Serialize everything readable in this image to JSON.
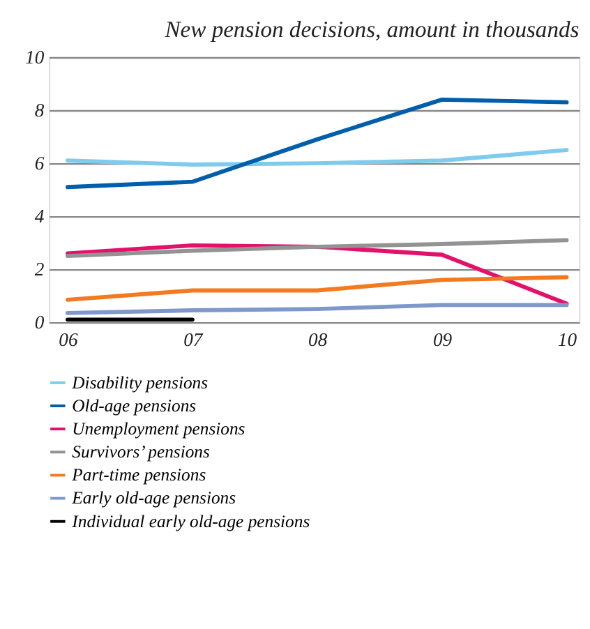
{
  "chart_data": {
    "type": "line",
    "title": "New pension decisions, amount in thousands",
    "categories": [
      "06",
      "07",
      "08",
      "09",
      "10"
    ],
    "series": [
      {
        "name": "Disability pensions",
        "color": "#7fcbee",
        "values": [
          6.1,
          5.95,
          6.0,
          6.1,
          6.5
        ]
      },
      {
        "name": "Old-age pensions",
        "color": "#005eaa",
        "values": [
          5.1,
          5.3,
          6.9,
          8.4,
          8.3
        ]
      },
      {
        "name": "Unemployment pensions",
        "color": "#e2126b",
        "values": [
          2.6,
          2.9,
          2.85,
          2.55,
          0.7
        ]
      },
      {
        "name": "Survivors’ pensions",
        "color": "#939393",
        "values": [
          2.5,
          2.7,
          2.85,
          2.95,
          3.1
        ]
      },
      {
        "name": "Part-time pensions",
        "color": "#f47a20",
        "values": [
          0.85,
          1.2,
          1.2,
          1.6,
          1.7
        ]
      },
      {
        "name": "Early old-age pensions",
        "color": "#7f98cc",
        "values": [
          0.35,
          0.45,
          0.5,
          0.65,
          0.65
        ]
      },
      {
        "name": "Individual early old-age pensions",
        "color": "#000000",
        "values": [
          0.1,
          0.1,
          null,
          null,
          null
        ]
      }
    ],
    "ylim": [
      0,
      10
    ],
    "yticks": [
      0,
      2,
      4,
      6,
      8,
      10
    ],
    "grid": "y",
    "legend": "bottom",
    "marker": "none",
    "line_style": "solid"
  }
}
